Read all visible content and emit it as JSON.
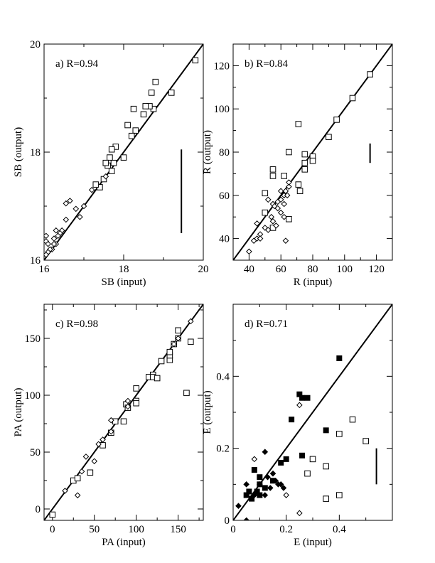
{
  "chart_data": [
    {
      "type": "scatter",
      "panel_label": "a) R=0.94",
      "xlabel": "SB (input)",
      "ylabel": "SB (output)",
      "xlim": [
        16,
        20
      ],
      "ylim": [
        16,
        20
      ],
      "xticks": [
        16,
        18,
        20
      ],
      "yticks": [
        16,
        18,
        20
      ],
      "xtick_labels": [
        "16",
        "18",
        "20"
      ],
      "ytick_labels": [
        "16",
        "18",
        "20"
      ],
      "identity_line": true,
      "error_bar": {
        "x": 19.45,
        "y_low": 16.5,
        "y_high": 18.05
      },
      "series": [
        {
          "marker": "square-open",
          "points": [
            [
              19.8,
              19.7
            ],
            [
              19.2,
              19.1
            ],
            [
              18.8,
              19.3
            ],
            [
              18.7,
              19.1
            ],
            [
              18.75,
              18.8
            ],
            [
              18.65,
              18.85
            ],
            [
              18.55,
              18.85
            ],
            [
              18.5,
              18.7
            ],
            [
              18.25,
              18.8
            ],
            [
              18.3,
              18.4
            ],
            [
              18.2,
              18.3
            ],
            [
              18.1,
              18.5
            ],
            [
              18.0,
              17.9
            ],
            [
              17.8,
              18.1
            ],
            [
              17.7,
              18.05
            ],
            [
              17.75,
              17.8
            ],
            [
              17.65,
              17.9
            ],
            [
              17.6,
              17.75
            ],
            [
              17.55,
              17.8
            ],
            [
              17.7,
              17.65
            ],
            [
              17.5,
              17.5
            ],
            [
              17.4,
              17.35
            ],
            [
              17.3,
              17.4
            ]
          ]
        },
        {
          "marker": "diamond-open",
          "points": [
            [
              17.55,
              17.55
            ],
            [
              17.2,
              17.3
            ],
            [
              17.0,
              17.0
            ],
            [
              16.9,
              16.8
            ],
            [
              16.8,
              16.95
            ],
            [
              16.65,
              17.1
            ],
            [
              16.55,
              17.05
            ],
            [
              16.55,
              16.75
            ],
            [
              16.45,
              16.55
            ],
            [
              16.4,
              16.5
            ],
            [
              16.35,
              16.45
            ],
            [
              16.3,
              16.3
            ],
            [
              16.25,
              16.3
            ],
            [
              16.2,
              16.2
            ],
            [
              16.15,
              16.2
            ],
            [
              16.1,
              16.15
            ],
            [
              16.05,
              16.1
            ],
            [
              16.05,
              16.35
            ],
            [
              16.1,
              16.3
            ],
            [
              16.05,
              16.45
            ],
            [
              16.3,
              16.55
            ],
            [
              16.25,
              16.4
            ]
          ]
        }
      ]
    },
    {
      "type": "scatter",
      "panel_label": "b) R=0.84",
      "xlabel": "R (input)",
      "ylabel": "R (output)",
      "xlim": [
        30,
        130
      ],
      "ylim": [
        30,
        130
      ],
      "xticks": [
        40,
        60,
        80,
        100,
        120
      ],
      "yticks": [
        40,
        60,
        80,
        100,
        120
      ],
      "xtick_labels": [
        "40",
        "60",
        "80",
        "100",
        "120"
      ],
      "ytick_labels": [
        "40",
        "60",
        "80",
        "100",
        "120"
      ],
      "identity_line": true,
      "error_bar": {
        "x": 116,
        "y_low": 75,
        "y_high": 84
      },
      "series": [
        {
          "marker": "square-open",
          "points": [
            [
              116,
              116
            ],
            [
              105,
              105
            ],
            [
              95,
              95
            ],
            [
              90,
              87
            ],
            [
              80,
              78
            ],
            [
              80,
              76
            ],
            [
              75,
              79
            ],
            [
              75,
              75
            ],
            [
              75,
              72
            ],
            [
              71,
              93
            ],
            [
              71,
              65
            ],
            [
              72,
              62
            ],
            [
              65,
              80
            ],
            [
              62,
              69
            ],
            [
              55,
              72
            ],
            [
              55,
              69
            ],
            [
              65,
              49
            ],
            [
              55,
              45
            ],
            [
              50,
              52
            ],
            [
              50,
              61
            ]
          ]
        },
        {
          "marker": "diamond-open",
          "points": [
            [
              40,
              34
            ],
            [
              43,
              39
            ],
            [
              45,
              40
            ],
            [
              47,
              42
            ],
            [
              47,
              40
            ],
            [
              45,
              47
            ],
            [
              50,
              45
            ],
            [
              52,
              44
            ],
            [
              55,
              48
            ],
            [
              57,
              46
            ],
            [
              55,
              56
            ],
            [
              58,
              57
            ],
            [
              56,
              55
            ],
            [
              60,
              62
            ],
            [
              60,
              58
            ],
            [
              62,
              60
            ],
            [
              63,
              62
            ],
            [
              65,
              64
            ],
            [
              65,
              66
            ],
            [
              64,
              60
            ],
            [
              62,
              56
            ],
            [
              60,
              52
            ],
            [
              62,
              50
            ],
            [
              58,
              54
            ],
            [
              63,
              39
            ],
            [
              54,
              50
            ],
            [
              52,
              58
            ]
          ]
        }
      ]
    },
    {
      "type": "scatter",
      "panel_label": "c) R=0.98",
      "xlabel": "PA (input)",
      "ylabel": "PA (output)",
      "xlim": [
        -10,
        180
      ],
      "ylim": [
        -10,
        180
      ],
      "xticks": [
        0,
        50,
        100,
        150
      ],
      "yticks": [
        0,
        50,
        100,
        150
      ],
      "xtick_labels": [
        "0",
        "50",
        "100",
        "150"
      ],
      "ytick_labels": [
        "0",
        "50",
        "100",
        "150"
      ],
      "identity_line": true,
      "error_bar": null,
      "series": [
        {
          "marker": "square-open",
          "points": [
            [
              0,
              -5
            ],
            [
              25,
              25
            ],
            [
              30,
              27
            ],
            [
              45,
              32
            ],
            [
              60,
              56
            ],
            [
              70,
              67
            ],
            [
              75,
              77
            ],
            [
              85,
              77
            ],
            [
              88,
              92
            ],
            [
              90,
              89
            ],
            [
              100,
              95
            ],
            [
              100,
              93
            ],
            [
              100,
              106
            ],
            [
              115,
              116
            ],
            [
              120,
              118
            ],
            [
              120,
              116
            ],
            [
              125,
              115
            ],
            [
              130,
              130
            ],
            [
              140,
              131
            ],
            [
              140,
              135
            ],
            [
              140,
              138
            ],
            [
              150,
              157
            ],
            [
              150,
              150
            ],
            [
              160,
              102
            ],
            [
              165,
              147
            ],
            [
              145,
              145
            ]
          ]
        },
        {
          "marker": "diamond-open",
          "points": [
            [
              15,
              16
            ],
            [
              30,
              12
            ],
            [
              35,
              33
            ],
            [
              40,
              46
            ],
            [
              50,
              42
            ],
            [
              55,
              57
            ],
            [
              60,
              61
            ],
            [
              70,
              68
            ],
            [
              70,
              78
            ],
            [
              90,
              95
            ],
            [
              90,
              90
            ],
            [
              165,
              165
            ],
            [
              145,
              145
            ],
            [
              150,
              150
            ]
          ]
        }
      ]
    },
    {
      "type": "scatter",
      "panel_label": "d) R=0.71",
      "xlabel": "E (input)",
      "ylabel": "E (output)",
      "xlim": [
        0,
        0.6
      ],
      "ylim": [
        0,
        0.6
      ],
      "xticks": [
        0,
        0.2,
        0.4
      ],
      "yticks": [
        0,
        0.2,
        0.4
      ],
      "xtick_labels": [
        "0",
        "0.2",
        "0.4"
      ],
      "ytick_labels": [
        "0",
        "0.2",
        "0.4"
      ],
      "identity_line": true,
      "error_bar": {
        "x": 0.54,
        "y_low": 0.1,
        "y_high": 0.2
      },
      "series": [
        {
          "marker": "square-filled",
          "points": [
            [
              0.4,
              0.45
            ],
            [
              0.25,
              0.35
            ],
            [
              0.26,
              0.34
            ],
            [
              0.28,
              0.34
            ],
            [
              0.22,
              0.28
            ],
            [
              0.35,
              0.25
            ],
            [
              0.26,
              0.18
            ],
            [
              0.2,
              0.17
            ],
            [
              0.18,
              0.16
            ],
            [
              0.08,
              0.14
            ],
            [
              0.1,
              0.12
            ],
            [
              0.06,
              0.08
            ],
            [
              0.07,
              0.06
            ],
            [
              0.05,
              0.07
            ],
            [
              0.1,
              0.1
            ],
            [
              0.12,
              0.09
            ],
            [
              0.15,
              0.11
            ],
            [
              0.1,
              0.07
            ],
            [
              0.09,
              0.08
            ]
          ]
        },
        {
          "marker": "square-open",
          "points": [
            [
              0.45,
              0.28
            ],
            [
              0.4,
              0.24
            ],
            [
              0.5,
              0.22
            ],
            [
              0.3,
              0.17
            ],
            [
              0.28,
              0.13
            ],
            [
              0.35,
              0.15
            ],
            [
              0.4,
              0.07
            ],
            [
              0.35,
              0.06
            ]
          ]
        },
        {
          "marker": "diamond-filled",
          "points": [
            [
              0.02,
              0.04
            ],
            [
              0.05,
              0.0
            ],
            [
              0.05,
              0.1
            ],
            [
              0.08,
              0.07
            ],
            [
              0.1,
              0.1
            ],
            [
              0.12,
              0.07
            ],
            [
              0.14,
              0.09
            ],
            [
              0.13,
              0.12
            ],
            [
              0.15,
              0.13
            ],
            [
              0.17,
              0.1
            ],
            [
              0.19,
              0.09
            ],
            [
              0.18,
              0.1
            ],
            [
              0.12,
              0.19
            ],
            [
              0.16,
              0.11
            ]
          ]
        },
        {
          "marker": "diamond-open",
          "points": [
            [
              0.25,
              0.32
            ],
            [
              0.08,
              0.17
            ],
            [
              0.2,
              0.07
            ],
            [
              0.25,
              0.02
            ]
          ]
        }
      ]
    }
  ]
}
